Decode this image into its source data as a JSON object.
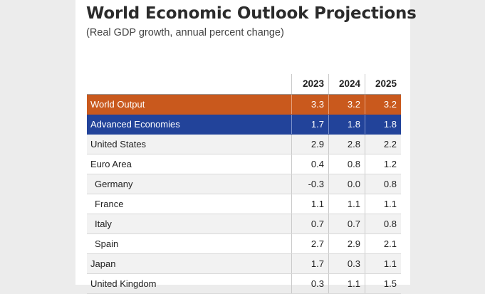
{
  "title": "World Economic Outlook Projections",
  "subtitle": "(Real GDP growth, annual percent change)",
  "table": {
    "columns": [
      "2023",
      "2024",
      "2025"
    ],
    "rows": [
      {
        "label": "World Output",
        "values": [
          "3.3",
          "3.2",
          "3.2"
        ]
      },
      {
        "label": "Advanced Economies",
        "values": [
          "1.7",
          "1.8",
          "1.8"
        ]
      },
      {
        "label": "United States",
        "values": [
          "2.9",
          "2.8",
          "2.2"
        ]
      },
      {
        "label": "Euro Area",
        "values": [
          "0.4",
          "0.8",
          "1.2"
        ]
      },
      {
        "label": "Germany",
        "values": [
          "-0.3",
          "0.0",
          "0.8"
        ]
      },
      {
        "label": "France",
        "values": [
          "1.1",
          "1.1",
          "1.1"
        ]
      },
      {
        "label": "Italy",
        "values": [
          "0.7",
          "0.7",
          "0.8"
        ]
      },
      {
        "label": "Spain",
        "values": [
          "2.7",
          "2.9",
          "2.1"
        ]
      },
      {
        "label": "Japan",
        "values": [
          "1.7",
          "0.3",
          "1.1"
        ]
      },
      {
        "label": "United Kingdom",
        "values": [
          "0.3",
          "1.1",
          "1.5"
        ]
      }
    ]
  },
  "colors": {
    "world_output_row": "#c9591d",
    "advanced_economies_row": "#22439a"
  }
}
